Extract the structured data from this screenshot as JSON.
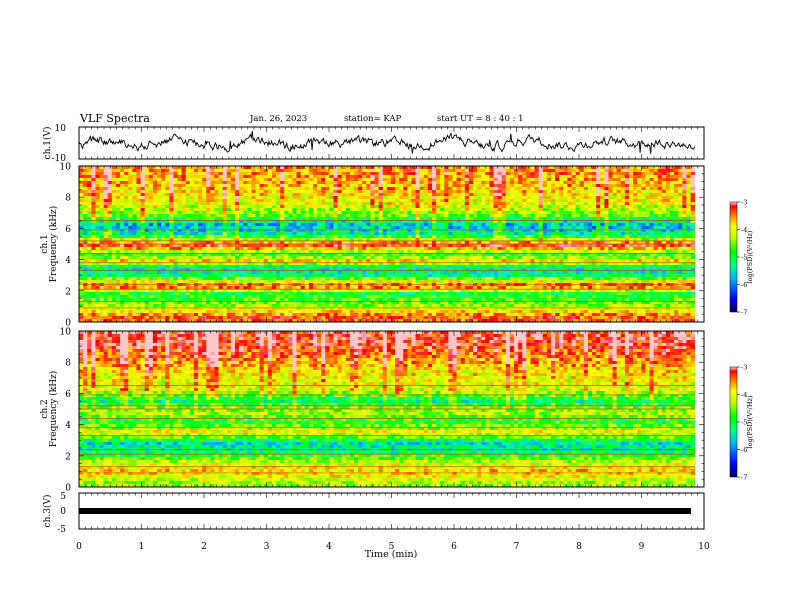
{
  "header": {
    "title": "VLF Spectra",
    "date": "Jan. 26, 2023",
    "station": "station= KAP",
    "start": "start UT =  8 : 40 : 1"
  },
  "chart_data": [
    {
      "type": "line",
      "panel": "ch1-waveform",
      "ylabel": "ch.1(V)",
      "ylim": [
        -10,
        10
      ],
      "y_ticks": [
        "10",
        "-10"
      ],
      "xlim": [
        0,
        10
      ],
      "series": [
        {
          "values_approx": "noisy signal oscillating around 0 V, amplitude ~3-8 V, duration 0-9.85 min"
        }
      ]
    },
    {
      "type": "heatmap",
      "panel": "ch1-spectrogram",
      "title": "ch.1",
      "ylabel": "Frequency (kHz)",
      "ylim": [
        0,
        10
      ],
      "y_ticks": [
        "0",
        "2",
        "4",
        "6",
        "8",
        "10"
      ],
      "xlim": [
        0,
        10
      ],
      "data_end_min": 9.85,
      "colorbar": {
        "label": "log(PSD)(V²/Hz)",
        "range": [
          -7,
          -3
        ],
        "ticks": [
          "-3",
          "-4",
          "-5",
          "-6",
          "-7"
        ]
      },
      "band_levels_khz": [
        {
          "f": 0.3,
          "v": -3.6
        },
        {
          "f": 1.0,
          "v": -4.6
        },
        {
          "f": 1.8,
          "v": -5.2
        },
        {
          "f": 2.3,
          "v": -3.5
        },
        {
          "f": 3.0,
          "v": -5.4
        },
        {
          "f": 3.5,
          "v": -5.5
        },
        {
          "f": 3.9,
          "v": -4.0
        },
        {
          "f": 4.3,
          "v": -5.1
        },
        {
          "f": 4.9,
          "v": -3.4
        },
        {
          "f": 5.6,
          "v": -5.5
        },
        {
          "f": 6.2,
          "v": -5.9
        },
        {
          "f": 6.8,
          "v": -5.0
        },
        {
          "f": 7.5,
          "v": -4.4
        },
        {
          "f": 8.5,
          "v": -4.1
        },
        {
          "f": 9.5,
          "v": -3.9
        }
      ]
    },
    {
      "type": "heatmap",
      "panel": "ch2-spectrogram",
      "title": "ch.2",
      "ylabel": "Frequency (kHz)",
      "ylim": [
        0,
        10
      ],
      "y_ticks": [
        "0",
        "2",
        "4",
        "6",
        "8",
        "10"
      ],
      "xlim": [
        0,
        10
      ],
      "data_end_min": 9.85,
      "colorbar": {
        "label": "log(PSD)(V²/Hz)",
        "range": [
          -7,
          -3
        ],
        "ticks": [
          "-3",
          "-4",
          "-5",
          "-6",
          "-7"
        ]
      },
      "band_levels_khz": [
        {
          "f": 0.3,
          "v": -4.6
        },
        {
          "f": 1.0,
          "v": -4.0
        },
        {
          "f": 1.6,
          "v": -4.5
        },
        {
          "f": 2.2,
          "v": -5.3
        },
        {
          "f": 2.8,
          "v": -5.6
        },
        {
          "f": 3.5,
          "v": -4.2
        },
        {
          "f": 4.2,
          "v": -5.2
        },
        {
          "f": 4.8,
          "v": -4.5
        },
        {
          "f": 5.5,
          "v": -5.4
        },
        {
          "f": 6.3,
          "v": -4.4
        },
        {
          "f": 7.2,
          "v": -4.3
        },
        {
          "f": 8.3,
          "v": -3.8
        },
        {
          "f": 9.3,
          "v": -3.4
        }
      ]
    },
    {
      "type": "line",
      "panel": "ch3-waveform",
      "ylabel": "ch.3(V)",
      "ylim": [
        -5,
        5
      ],
      "y_ticks": [
        "5",
        "0",
        "-5"
      ],
      "xlim": [
        0,
        10
      ],
      "series": [
        {
          "values_approx": "thick flat trace near -0.5 V from 0 to 9.85 min"
        }
      ]
    }
  ],
  "x_axis": {
    "label": "Time (min)",
    "ticks": [
      "0",
      "1",
      "2",
      "3",
      "4",
      "5",
      "6",
      "7",
      "8",
      "9",
      "10"
    ]
  },
  "colors": {
    "colormap": [
      "#000070",
      "#0000ff",
      "#00a0ff",
      "#00ffb0",
      "#00ff00",
      "#a0ff00",
      "#ffff00",
      "#ffa000",
      "#ff0000",
      "#ffc8c8"
    ]
  }
}
